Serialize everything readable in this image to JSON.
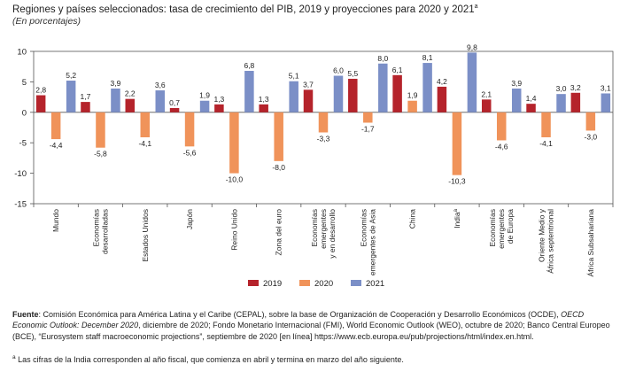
{
  "header": {
    "title": "Regiones y países seleccionados: tasa de crecimiento del PIB, 2019 y proyecciones para 2020 y 2021",
    "title_sup": "a",
    "subtitle": "(En porcentajes)"
  },
  "chart_data": {
    "type": "bar",
    "categories": [
      "Mundo",
      "Economías desarrolladas",
      "Estados Unidos",
      "Japón",
      "Reino Unido",
      "Zona del euro",
      "Economías emergentes y en desarrollo",
      "Economías emergentes de Asia",
      "China",
      "India",
      "Economías emergentes de Europa",
      "Oriente Medio y África septentrional",
      "África Subsahariana"
    ],
    "category_labels": [
      [
        "Mundo"
      ],
      [
        "Economías",
        "desarrolladas"
      ],
      [
        "Estados Unidos"
      ],
      [
        "Japón"
      ],
      [
        "Reino Unido"
      ],
      [
        "Zona del euro"
      ],
      [
        "Economías",
        "emergentes",
        "y en desarrollo"
      ],
      [
        "Economías",
        "emergentes de Asia"
      ],
      [
        "China"
      ],
      [
        "India"
      ],
      [
        "Economías",
        "emergentes",
        "de Europa"
      ],
      [
        "Oriente Medio y",
        "África septentrional"
      ],
      [
        "África Subsahariana"
      ]
    ],
    "category_sup": [
      "",
      "",
      "",
      "",
      "",
      "",
      "",
      "",
      "",
      "a",
      "",
      "",
      ""
    ],
    "series": [
      {
        "name": "2019",
        "color": "#b5232b",
        "values": [
          2.8,
          1.7,
          2.2,
          0.7,
          1.3,
          1.3,
          3.7,
          5.5,
          6.1,
          4.2,
          2.1,
          1.4,
          3.2
        ]
      },
      {
        "name": "2020",
        "color": "#f0935a",
        "values": [
          -4.4,
          -5.8,
          -4.1,
          -5.6,
          -10.0,
          -8.0,
          -3.3,
          -1.7,
          1.9,
          -10.3,
          -4.6,
          -4.1,
          -3.0
        ]
      },
      {
        "name": "2021",
        "color": "#7b8fc7",
        "values": [
          5.2,
          3.9,
          3.6,
          1.9,
          6.8,
          5.1,
          6.0,
          8.0,
          8.1,
          9.8,
          3.9,
          3.0,
          3.1
        ]
      }
    ],
    "value_labels": [
      [
        "2,8",
        "1,7",
        "2,2",
        "0,7",
        "1,3",
        "1,3",
        "3,7",
        "5,5",
        "6,1",
        "4,2",
        "2,1",
        "1,4",
        "3,2"
      ],
      [
        "-4,4",
        "-5,8",
        "-4,1",
        "-5,6",
        "-10,0",
        "-8,0",
        "-3,3",
        "-1,7",
        "1,9",
        "-10,3",
        "-4,6",
        "-4,1",
        "-3,0"
      ],
      [
        "5,2",
        "3,9",
        "3,6",
        "1,9",
        "6,8",
        "5,1",
        "6,0",
        "8,0",
        "8,1",
        "9,8",
        "3,9",
        "3,0",
        "3,1"
      ]
    ],
    "yticks": [
      10,
      5,
      0,
      -5,
      -10,
      -15
    ],
    "ytick_labels": [
      "10",
      "5",
      "0",
      "-5",
      "-10",
      "-15"
    ],
    "ylim": [
      -15,
      10
    ],
    "xlabel": "",
    "ylabel": "",
    "legend": [
      "2019",
      "2020",
      "2021"
    ],
    "legend_position": "bottom-center",
    "grid": false
  },
  "source": {
    "label": "Fuente",
    "p1": ": Comisión Económica para América Latina y el Caribe (CEPAL), sobre la base de Organización de Cooperación y Desarrollo Económicos (OCDE), ",
    "p1_italic": "OECD Economic Outlook: December 2020",
    "p2": ", diciembre de 2020; Fondo Monetario Internacional (FMI), World Economic Outlook (WEO), octubre de 2020; Banco Central Europeo (BCE), “Eurosystem staff macroeconomic projections”, septiembre de 2020 [en línea] https://www.ecb.europa.eu/pub/projections/html/index.en.html."
  },
  "footnote": {
    "sup": "a",
    "text": " Las cifras de la India corresponden al año fiscal, que comienza en abril y termina en marzo del año siguiente."
  }
}
